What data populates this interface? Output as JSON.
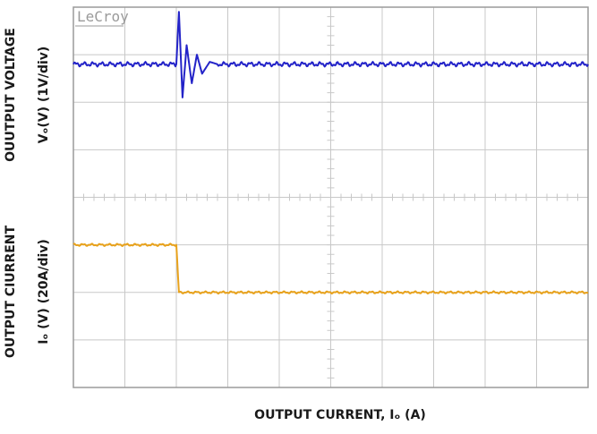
{
  "brand": "LeCroy",
  "ylabels": {
    "voltage_title": "OUUTPUT VOLTAGE",
    "voltage_units": "Vₒ(V) (1V/div)",
    "current_title": "OUTPUT CIURRENT",
    "current_units": "Iₒ (V) (20A/div)"
  },
  "xlabel": "OUTPUT CURRENT, Iₒ (A)",
  "colors": {
    "voltage_trace": "#2323c8",
    "current_trace": "#e8a21c",
    "grid": "#c8c8c8",
    "frame": "#9a9a9a"
  },
  "chart_data": {
    "type": "line",
    "grid": true,
    "x_divisions": 10,
    "y_divisions": 8,
    "series": [
      {
        "name": "",
        "unit_label": "1V/div",
        "points": [
          [
            0,
            2.8
          ],
          [
            2.0,
            2.8
          ],
          [
            2.05,
            3.9
          ],
          [
            2.12,
            2.1
          ],
          [
            2.2,
            3.2
          ],
          [
            2.3,
            2.4
          ],
          [
            2.4,
            3.0
          ],
          [
            2.5,
            2.6
          ],
          [
            2.65,
            2.85
          ],
          [
            2.8,
            2.8
          ],
          [
            10,
            2.8
          ]
        ]
      },
      {
        "name": "",
        "unit_label": "20A/div",
        "points": [
          [
            0,
            -1.0
          ],
          [
            2.0,
            -1.0
          ],
          [
            2.05,
            -2.0
          ],
          [
            10,
            -2.0
          ]
        ]
      }
    ]
  }
}
